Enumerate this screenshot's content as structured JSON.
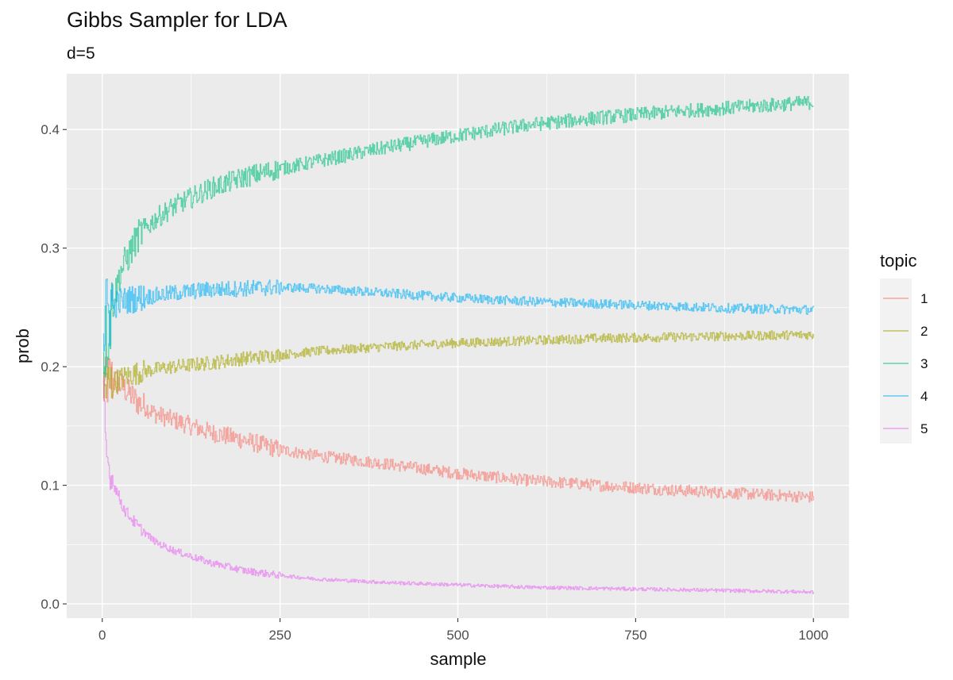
{
  "chart_data": {
    "type": "line",
    "title": "Gibbs Sampler for LDA",
    "subtitle": "d=5",
    "xlabel": "sample",
    "ylabel": "prob",
    "xlim": [
      -50,
      1050
    ],
    "ylim": [
      -0.012,
      0.447
    ],
    "x_ticks": [
      0,
      250,
      500,
      750,
      1000
    ],
    "x_tick_labels": [
      "0",
      "250",
      "500",
      "750",
      "1000"
    ],
    "y_ticks": [
      0.0,
      0.1,
      0.2,
      0.3,
      0.4
    ],
    "y_tick_labels": [
      "0.0",
      "0.1",
      "0.2",
      "0.3",
      "0.4"
    ],
    "grid": true,
    "legend": {
      "title": "topic",
      "position": "right"
    },
    "series": [
      {
        "name": "1",
        "color": "#F8766D",
        "x": [
          1,
          10,
          25,
          50,
          75,
          100,
          150,
          200,
          250,
          300,
          400,
          500,
          600,
          700,
          800,
          900,
          1000
        ],
        "y": [
          0.18,
          0.19,
          0.185,
          0.17,
          0.16,
          0.155,
          0.145,
          0.138,
          0.13,
          0.125,
          0.118,
          0.11,
          0.104,
          0.1,
          0.096,
          0.093,
          0.09
        ],
        "noise": [
          0.025,
          0.012,
          0.008,
          0.005
        ]
      },
      {
        "name": "2",
        "color": "#A3A500",
        "x": [
          1,
          10,
          25,
          50,
          75,
          100,
          150,
          200,
          250,
          300,
          400,
          500,
          600,
          700,
          800,
          900,
          1000
        ],
        "y": [
          0.18,
          0.185,
          0.19,
          0.195,
          0.198,
          0.2,
          0.203,
          0.207,
          0.21,
          0.213,
          0.217,
          0.22,
          0.222,
          0.224,
          0.225,
          0.226,
          0.227
        ],
        "noise": [
          0.025,
          0.01,
          0.006,
          0.004
        ]
      },
      {
        "name": "3",
        "color": "#00BF7D",
        "x": [
          1,
          10,
          25,
          50,
          75,
          100,
          150,
          200,
          250,
          300,
          400,
          500,
          600,
          700,
          800,
          900,
          1000
        ],
        "y": [
          0.21,
          0.24,
          0.28,
          0.31,
          0.325,
          0.335,
          0.35,
          0.36,
          0.367,
          0.373,
          0.385,
          0.395,
          0.404,
          0.41,
          0.415,
          0.419,
          0.423
        ],
        "noise": [
          0.035,
          0.014,
          0.009,
          0.006
        ]
      },
      {
        "name": "4",
        "color": "#00B0F6",
        "x": [
          1,
          10,
          25,
          50,
          75,
          100,
          150,
          200,
          250,
          300,
          400,
          500,
          600,
          700,
          800,
          900,
          1000
        ],
        "y": [
          0.23,
          0.25,
          0.255,
          0.258,
          0.26,
          0.262,
          0.265,
          0.266,
          0.267,
          0.266,
          0.262,
          0.258,
          0.255,
          0.253,
          0.251,
          0.249,
          0.248
        ],
        "noise": [
          0.04,
          0.012,
          0.007,
          0.004
        ]
      },
      {
        "name": "5",
        "color": "#E76BF3",
        "x": [
          1,
          5,
          10,
          20,
          30,
          50,
          75,
          100,
          150,
          200,
          250,
          300,
          400,
          500,
          600,
          700,
          800,
          900,
          1000
        ],
        "y": [
          0.19,
          0.13,
          0.11,
          0.095,
          0.08,
          0.065,
          0.052,
          0.045,
          0.035,
          0.028,
          0.024,
          0.021,
          0.018,
          0.016,
          0.014,
          0.013,
          0.012,
          0.011,
          0.01
        ],
        "noise": [
          0.012,
          0.005,
          0.003,
          0.0015
        ]
      }
    ]
  }
}
